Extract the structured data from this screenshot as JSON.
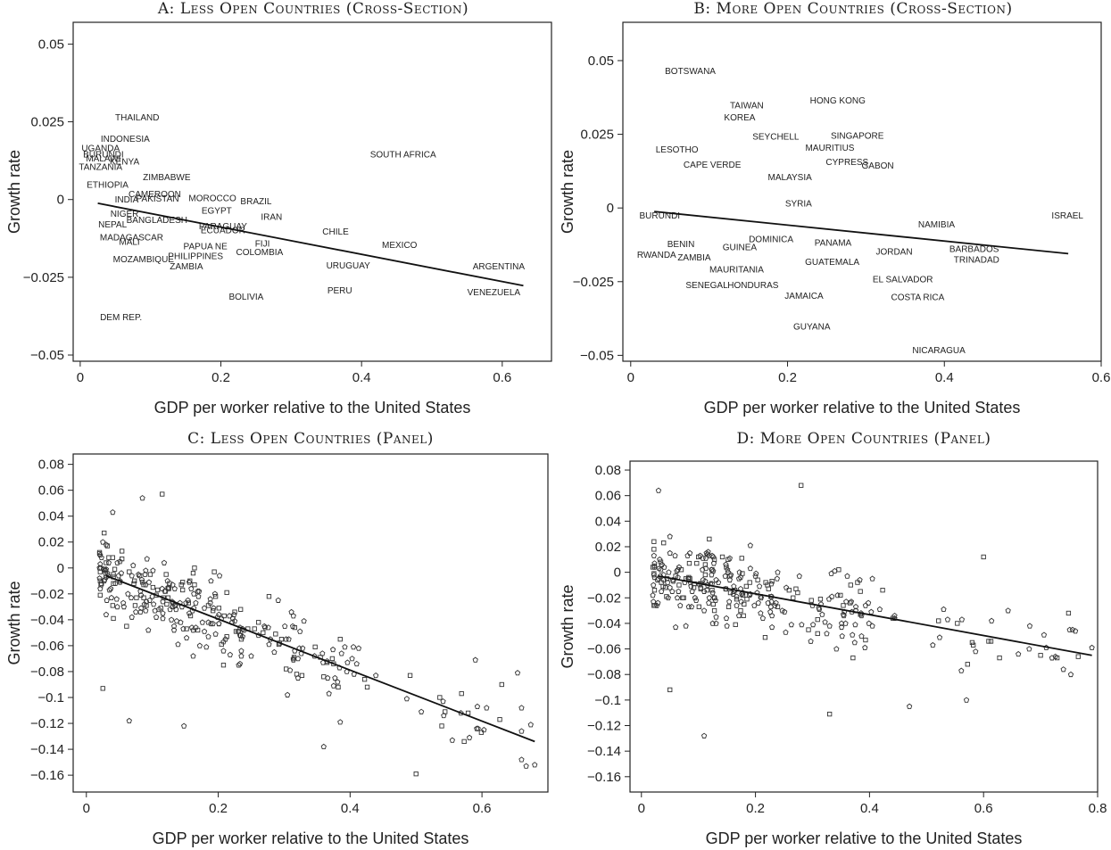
{
  "chart_data": [
    {
      "id": "A",
      "type": "scatter",
      "title": "A: Less Open Countries (Cross-Section)",
      "xlabel": "GDP per worker relative to the United States",
      "ylabel": "Growth rate",
      "xlim": [
        -0.01,
        0.67
      ],
      "ylim": [
        -0.052,
        0.057
      ],
      "xticks": [
        0,
        0.2,
        0.4,
        0.6
      ],
      "xtick_labels": [
        "0",
        "0.2",
        "0.4",
        "0.6"
      ],
      "yticks": [
        0.05,
        0.025,
        0,
        -0.025,
        -0.05
      ],
      "ytick_labels": [
        "0.05",
        "0.025",
        "0",
        "−0.025",
        "−0.05"
      ],
      "markers": "labels",
      "points": [
        {
          "label": "THAILAND",
          "x": 0.081,
          "y": 0.0265
        },
        {
          "label": "INDONESIA",
          "x": 0.064,
          "y": 0.0195
        },
        {
          "label": "UGANDA",
          "x": 0.029,
          "y": 0.0165
        },
        {
          "label": "BURUNDI",
          "x": 0.033,
          "y": 0.0145
        },
        {
          "label": "MALAWI",
          "x": 0.033,
          "y": 0.0132
        },
        {
          "label": "KENYA",
          "x": 0.063,
          "y": 0.0122
        },
        {
          "label": "TANZANIA",
          "x": 0.029,
          "y": 0.0105
        },
        {
          "label": "ZIMBABWE",
          "x": 0.123,
          "y": 0.0073
        },
        {
          "label": "ETHIOPIA",
          "x": 0.039,
          "y": 0.0048
        },
        {
          "label": "CAMEROON",
          "x": 0.106,
          "y": 0.0018
        },
        {
          "label": "INDIA",
          "x": 0.066,
          "y": 0.0
        },
        {
          "label": "PAKISTAN",
          "x": 0.11,
          "y": 0.0003
        },
        {
          "label": "MOROCCO",
          "x": 0.188,
          "y": 0.0005
        },
        {
          "label": "BRAZIL",
          "x": 0.25,
          "y": -0.0005
        },
        {
          "label": "EGYPT",
          "x": 0.194,
          "y": -0.0035
        },
        {
          "label": "IRAN",
          "x": 0.272,
          "y": -0.0055
        },
        {
          "label": "NIGER",
          "x": 0.063,
          "y": -0.0045
        },
        {
          "label": "BANGLADESH",
          "x": 0.109,
          "y": -0.0065
        },
        {
          "label": "NEPAL",
          "x": 0.046,
          "y": -0.008
        },
        {
          "label": "PARAGUAY",
          "x": 0.203,
          "y": -0.0085
        },
        {
          "label": "ECUADOR",
          "x": 0.203,
          "y": -0.0098
        },
        {
          "label": "CHILE",
          "x": 0.363,
          "y": -0.0102
        },
        {
          "label": "MADAGASCAR",
          "x": 0.073,
          "y": -0.0122
        },
        {
          "label": "MALI",
          "x": 0.07,
          "y": -0.0135
        },
        {
          "label": "FIJI",
          "x": 0.259,
          "y": -0.0142
        },
        {
          "label": "MEXICO",
          "x": 0.454,
          "y": -0.0145
        },
        {
          "label": "PAPUA NE",
          "x": 0.178,
          "y": -0.015
        },
        {
          "label": "COLOMBIA",
          "x": 0.255,
          "y": -0.0168
        },
        {
          "label": "PHILIPPINES",
          "x": 0.164,
          "y": -0.0182
        },
        {
          "label": "MOZAMBIQUE",
          "x": 0.09,
          "y": -0.0192
        },
        {
          "label": "ZAMBIA",
          "x": 0.151,
          "y": -0.0215
        },
        {
          "label": "URUGUAY",
          "x": 0.381,
          "y": -0.0212
        },
        {
          "label": "ARGENTINA",
          "x": 0.595,
          "y": -0.0215
        },
        {
          "label": "SOUTH AFRICA",
          "x": 0.459,
          "y": 0.0145
        },
        {
          "label": "PERU",
          "x": 0.369,
          "y": -0.0292
        },
        {
          "label": "BOLIVIA",
          "x": 0.236,
          "y": -0.0312
        },
        {
          "label": "VENEZUELA",
          "x": 0.588,
          "y": -0.0298
        },
        {
          "label": "DEM REP.",
          "x": 0.058,
          "y": -0.0378
        }
      ],
      "fit_line": {
        "x": [
          0.025,
          0.63
        ],
        "y": [
          -0.0012,
          -0.0277
        ]
      }
    },
    {
      "id": "B",
      "type": "scatter",
      "title": "B: More Open Countries (Cross-Section)",
      "xlabel": "GDP per worker relative to the United States",
      "ylabel": "Growth rate",
      "xlim": [
        -0.01,
        0.6
      ],
      "ylim": [
        -0.052,
        0.063
      ],
      "xticks": [
        0,
        0.2,
        0.4,
        0.6
      ],
      "xtick_labels": [
        "0",
        "0.2",
        "0.4",
        "0.6"
      ],
      "yticks": [
        0.05,
        0.025,
        0,
        -0.025,
        -0.05
      ],
      "ytick_labels": [
        "0.05",
        "0.025",
        "0",
        "−0.025",
        "−0.05"
      ],
      "markers": "labels",
      "points": [
        {
          "label": "BOTSWANA",
          "x": 0.076,
          "y": 0.0465
        },
        {
          "label": "TAIWAN",
          "x": 0.148,
          "y": 0.0348
        },
        {
          "label": "KOREA",
          "x": 0.139,
          "y": 0.0308
        },
        {
          "label": "HONG KONG",
          "x": 0.264,
          "y": 0.0365
        },
        {
          "label": "SEYCHELL",
          "x": 0.185,
          "y": 0.0243
        },
        {
          "label": "SINGAPORE",
          "x": 0.289,
          "y": 0.0245
        },
        {
          "label": "MAURITIUS",
          "x": 0.254,
          "y": 0.0205
        },
        {
          "label": "LESOTHO",
          "x": 0.059,
          "y": 0.0198
        },
        {
          "label": "CYPRESS",
          "x": 0.276,
          "y": 0.0157
        },
        {
          "label": "GABON",
          "x": 0.315,
          "y": 0.0145
        },
        {
          "label": "CAPE VERDE",
          "x": 0.104,
          "y": 0.0148
        },
        {
          "label": "MALAYSIA",
          "x": 0.203,
          "y": 0.0105
        },
        {
          "label": "SYRIA",
          "x": 0.214,
          "y": 0.0015
        },
        {
          "label": "BURUNDI",
          "x": 0.037,
          "y": -0.0025
        },
        {
          "label": "NAMIBIA",
          "x": 0.39,
          "y": -0.0055
        },
        {
          "label": "ISRAEL",
          "x": 0.557,
          "y": -0.0025
        },
        {
          "label": "DOMINICA",
          "x": 0.179,
          "y": -0.0105
        },
        {
          "label": "BENIN",
          "x": 0.064,
          "y": -0.0122
        },
        {
          "label": "PANAMA",
          "x": 0.258,
          "y": -0.0118
        },
        {
          "label": "GUINEA",
          "x": 0.139,
          "y": -0.0132
        },
        {
          "label": "JORDAN",
          "x": 0.336,
          "y": -0.0148
        },
        {
          "label": "BARBADOS",
          "x": 0.438,
          "y": -0.0138
        },
        {
          "label": "RWANDA",
          "x": 0.033,
          "y": -0.0158
        },
        {
          "label": "ZAMBIA",
          "x": 0.081,
          "y": -0.0168
        },
        {
          "label": "TRINADAD",
          "x": 0.441,
          "y": -0.0175
        },
        {
          "label": "GUATEMALA",
          "x": 0.257,
          "y": -0.0182
        },
        {
          "label": "MAURITANIA",
          "x": 0.135,
          "y": -0.0208
        },
        {
          "label": "EL SALVADOR",
          "x": 0.347,
          "y": -0.0242
        },
        {
          "label": "SENEGAL",
          "x": 0.097,
          "y": -0.0262
        },
        {
          "label": "HONDURAS",
          "x": 0.156,
          "y": -0.0262
        },
        {
          "label": "JAMAICA",
          "x": 0.221,
          "y": -0.0298
        },
        {
          "label": "COSTA RICA",
          "x": 0.366,
          "y": -0.0302
        },
        {
          "label": "GUYANA",
          "x": 0.231,
          "y": -0.0402
        },
        {
          "label": "NICARAGUA",
          "x": 0.393,
          "y": -0.0482
        }
      ],
      "fit_line": {
        "x": [
          0.03,
          0.558
        ],
        "y": [
          -0.0012,
          -0.0155
        ]
      }
    },
    {
      "id": "C",
      "type": "scatter",
      "title": "C: Less Open Countries (Panel)",
      "xlabel": "GDP per worker relative to the United States",
      "ylabel": "Growth rate",
      "xlim": [
        -0.02,
        0.7
      ],
      "ylim": [
        -0.173,
        0.088
      ],
      "xticks": [
        0,
        0.2,
        0.4,
        0.6
      ],
      "xtick_labels": [
        "0",
        "0.2",
        "0.4",
        "0.6"
      ],
      "yticks": [
        0.08,
        0.06,
        0.04,
        0.02,
        0,
        -0.02,
        -0.04,
        -0.06,
        -0.08,
        -0.1,
        -0.12,
        -0.14,
        -0.16
      ],
      "ytick_labels": [
        "0.08",
        "0.06",
        "0.04",
        "0.02",
        "0",
        "−0.02",
        "−0.04",
        "−0.06",
        "−0.08",
        "−0.1",
        "−0.12",
        "−0.14",
        "−0.16"
      ],
      "markers": "small-hollow",
      "n_points": 330,
      "fit_line": {
        "x": [
          0.03,
          0.68
        ],
        "y": [
          -0.006,
          -0.134
        ]
      },
      "sample_points": [
        {
          "x": 0.115,
          "y": 0.057
        },
        {
          "x": 0.085,
          "y": 0.054
        },
        {
          "x": 0.04,
          "y": 0.043
        },
        {
          "x": 0.025,
          "y": -0.093
        },
        {
          "x": 0.065,
          "y": -0.118
        },
        {
          "x": 0.148,
          "y": -0.122
        },
        {
          "x": 0.5,
          "y": -0.159
        },
        {
          "x": 0.68,
          "y": -0.152
        },
        {
          "x": 0.66,
          "y": -0.108
        },
        {
          "x": 0.63,
          "y": -0.09
        },
        {
          "x": 0.59,
          "y": -0.071
        },
        {
          "x": 0.36,
          "y": -0.138
        }
      ]
    },
    {
      "id": "D",
      "type": "scatter",
      "title": "D: More Open Countries (Panel)",
      "xlabel": "GDP per worker relative to the United States",
      "ylabel": "Growth rate",
      "xlim": [
        -0.02,
        0.8
      ],
      "ylim": [
        -0.172,
        0.087
      ],
      "xticks": [
        0,
        0.2,
        0.4,
        0.6,
        0.8
      ],
      "xtick_labels": [
        "0",
        "0.2",
        "0.4",
        "0.6",
        "0.8"
      ],
      "yticks": [
        0.08,
        0.06,
        0.04,
        0.02,
        0,
        -0.02,
        -0.04,
        -0.06,
        -0.08,
        -0.1,
        -0.12,
        -0.14,
        -0.16
      ],
      "ytick_labels": [
        "0.08",
        "0.06",
        "0.04",
        "0.02",
        "0",
        "−0.02",
        "−0.04",
        "−0.06",
        "−0.08",
        "−0.1",
        "−0.12",
        "−0.14",
        "−0.16"
      ],
      "markers": "small-hollow",
      "n_points": 320,
      "fit_line": {
        "x": [
          0.03,
          0.79
        ],
        "y": [
          -0.003,
          -0.065
        ]
      },
      "sample_points": [
        {
          "x": 0.28,
          "y": 0.068
        },
        {
          "x": 0.03,
          "y": 0.064
        },
        {
          "x": 0.11,
          "y": -0.128
        },
        {
          "x": 0.33,
          "y": -0.111
        },
        {
          "x": 0.47,
          "y": -0.105
        },
        {
          "x": 0.57,
          "y": -0.1
        },
        {
          "x": 0.6,
          "y": 0.012
        },
        {
          "x": 0.74,
          "y": -0.076
        },
        {
          "x": 0.79,
          "y": -0.059
        },
        {
          "x": 0.05,
          "y": -0.092
        }
      ]
    }
  ]
}
